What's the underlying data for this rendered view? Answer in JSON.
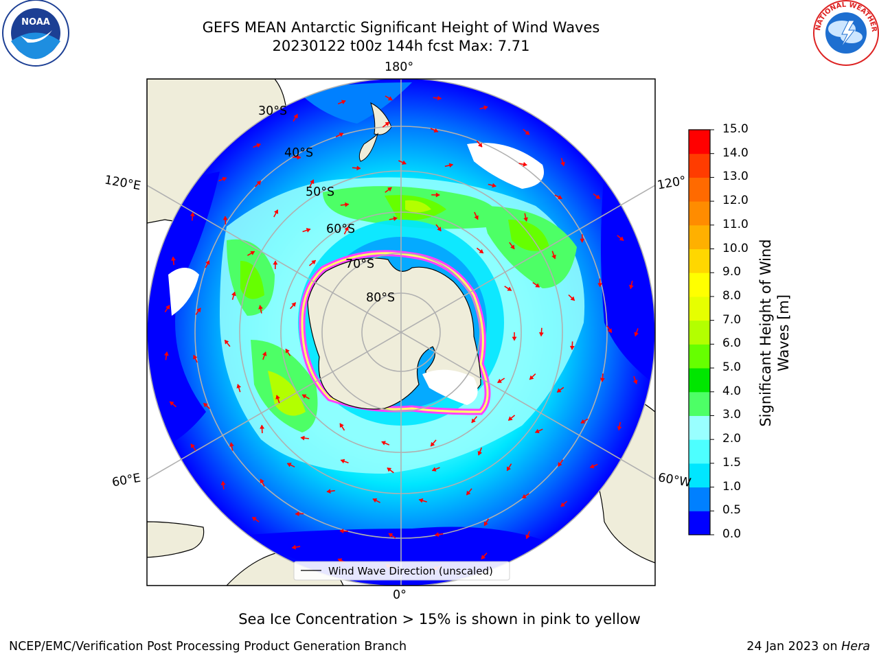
{
  "header": {
    "title_line1": "GEFS MEAN Antarctic Significant Height of Wind Waves",
    "title_line2": "20230122 t00z 144h fcst   Max: 7.71"
  },
  "logos": {
    "left": "NOAA",
    "right": "NATIONAL WEATHER SERVICE"
  },
  "map": {
    "lon_labels": {
      "top": "180°",
      "bottom": "0°",
      "left_upper": "120°E",
      "right_upper": "120°",
      "left_lower": "60°E",
      "right_lower": "60°W"
    },
    "lat_labels": [
      "30°S",
      "40°S",
      "50°S",
      "60°S",
      "70°S",
      "80°S"
    ],
    "legend": "Wind Wave Direction (unscaled)",
    "colors": {
      "land": "#efedda",
      "ocean_low": "#0000ff",
      "arrow": "#ff0000",
      "grid": "#b0b0b0"
    }
  },
  "colorbar": {
    "title": "Significant Height of Wind Waves [m]",
    "ticks": [
      "0.0",
      "0.5",
      "1.0",
      "1.5",
      "2.0",
      "3.0",
      "4.0",
      "5.0",
      "6.0",
      "7.0",
      "8.0",
      "9.0",
      "10.0",
      "11.0",
      "12.0",
      "13.0",
      "14.0",
      "15.0"
    ],
    "colors": [
      "#0000ff",
      "#0080ff",
      "#00e6ff",
      "#4dffff",
      "#99ffff",
      "#4dff66",
      "#00e600",
      "#66ff00",
      "#b3ff00",
      "#e6ff00",
      "#ffff00",
      "#ffd700",
      "#ffb000",
      "#ff8c00",
      "#ff6a00",
      "#ff3c00",
      "#ff0000"
    ]
  },
  "footer": {
    "note": "Sea Ice Concentration > 15% is shown in pink to yellow",
    "left": "NCEP/EMC/Verification Post Processing Product Generation Branch",
    "right_prefix": "24 Jan 2023 on ",
    "right_italic": "Hera"
  }
}
